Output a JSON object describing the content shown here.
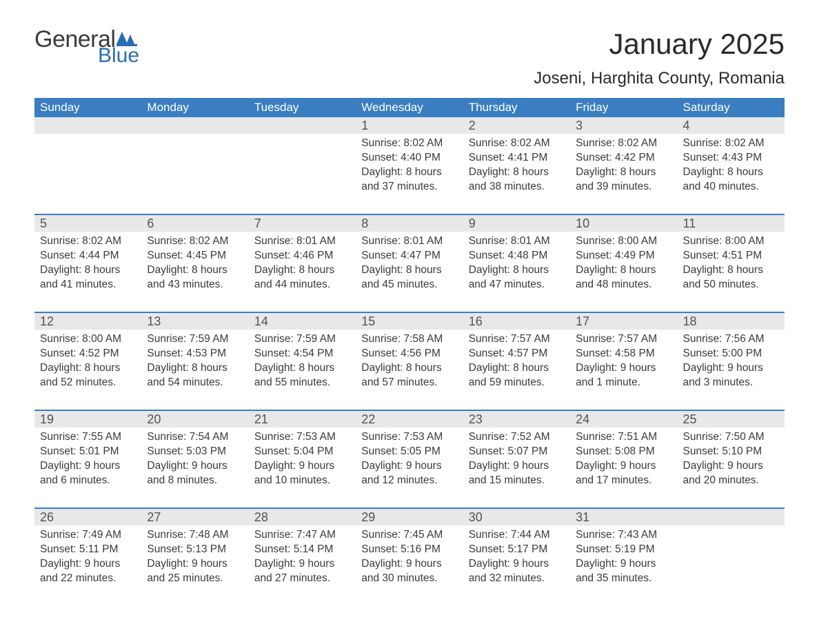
{
  "logo": {
    "text_general": "General",
    "text_blue": "Blue",
    "icon_color": "#2a6db5"
  },
  "header": {
    "month_title": "January 2025",
    "location": "Joseni, Harghita County, Romania"
  },
  "styling": {
    "header_bg": "#3a7ec1",
    "header_text": "#ffffff",
    "day_number_bg": "#e8e8e8",
    "day_number_color": "#525252",
    "body_text": "#3a3a3a",
    "row_border": "#3a7ec1",
    "page_bg": "#ffffff",
    "title_fontsize": 42,
    "location_fontsize": 24,
    "weekday_fontsize": 17,
    "daynum_fontsize": 18,
    "content_fontsize": 15.5
  },
  "weekdays": [
    "Sunday",
    "Monday",
    "Tuesday",
    "Wednesday",
    "Thursday",
    "Friday",
    "Saturday"
  ],
  "weeks": [
    [
      {
        "day": "",
        "sunrise": "",
        "sunset": "",
        "daylight": ""
      },
      {
        "day": "",
        "sunrise": "",
        "sunset": "",
        "daylight": ""
      },
      {
        "day": "",
        "sunrise": "",
        "sunset": "",
        "daylight": ""
      },
      {
        "day": "1",
        "sunrise": "8:02 AM",
        "sunset": "4:40 PM",
        "daylight": "8 hours and 37 minutes."
      },
      {
        "day": "2",
        "sunrise": "8:02 AM",
        "sunset": "4:41 PM",
        "daylight": "8 hours and 38 minutes."
      },
      {
        "day": "3",
        "sunrise": "8:02 AM",
        "sunset": "4:42 PM",
        "daylight": "8 hours and 39 minutes."
      },
      {
        "day": "4",
        "sunrise": "8:02 AM",
        "sunset": "4:43 PM",
        "daylight": "8 hours and 40 minutes."
      }
    ],
    [
      {
        "day": "5",
        "sunrise": "8:02 AM",
        "sunset": "4:44 PM",
        "daylight": "8 hours and 41 minutes."
      },
      {
        "day": "6",
        "sunrise": "8:02 AM",
        "sunset": "4:45 PM",
        "daylight": "8 hours and 43 minutes."
      },
      {
        "day": "7",
        "sunrise": "8:01 AM",
        "sunset": "4:46 PM",
        "daylight": "8 hours and 44 minutes."
      },
      {
        "day": "8",
        "sunrise": "8:01 AM",
        "sunset": "4:47 PM",
        "daylight": "8 hours and 45 minutes."
      },
      {
        "day": "9",
        "sunrise": "8:01 AM",
        "sunset": "4:48 PM",
        "daylight": "8 hours and 47 minutes."
      },
      {
        "day": "10",
        "sunrise": "8:00 AM",
        "sunset": "4:49 PM",
        "daylight": "8 hours and 48 minutes."
      },
      {
        "day": "11",
        "sunrise": "8:00 AM",
        "sunset": "4:51 PM",
        "daylight": "8 hours and 50 minutes."
      }
    ],
    [
      {
        "day": "12",
        "sunrise": "8:00 AM",
        "sunset": "4:52 PM",
        "daylight": "8 hours and 52 minutes."
      },
      {
        "day": "13",
        "sunrise": "7:59 AM",
        "sunset": "4:53 PM",
        "daylight": "8 hours and 54 minutes."
      },
      {
        "day": "14",
        "sunrise": "7:59 AM",
        "sunset": "4:54 PM",
        "daylight": "8 hours and 55 minutes."
      },
      {
        "day": "15",
        "sunrise": "7:58 AM",
        "sunset": "4:56 PM",
        "daylight": "8 hours and 57 minutes."
      },
      {
        "day": "16",
        "sunrise": "7:57 AM",
        "sunset": "4:57 PM",
        "daylight": "8 hours and 59 minutes."
      },
      {
        "day": "17",
        "sunrise": "7:57 AM",
        "sunset": "4:58 PM",
        "daylight": "9 hours and 1 minute."
      },
      {
        "day": "18",
        "sunrise": "7:56 AM",
        "sunset": "5:00 PM",
        "daylight": "9 hours and 3 minutes."
      }
    ],
    [
      {
        "day": "19",
        "sunrise": "7:55 AM",
        "sunset": "5:01 PM",
        "daylight": "9 hours and 6 minutes."
      },
      {
        "day": "20",
        "sunrise": "7:54 AM",
        "sunset": "5:03 PM",
        "daylight": "9 hours and 8 minutes."
      },
      {
        "day": "21",
        "sunrise": "7:53 AM",
        "sunset": "5:04 PM",
        "daylight": "9 hours and 10 minutes."
      },
      {
        "day": "22",
        "sunrise": "7:53 AM",
        "sunset": "5:05 PM",
        "daylight": "9 hours and 12 minutes."
      },
      {
        "day": "23",
        "sunrise": "7:52 AM",
        "sunset": "5:07 PM",
        "daylight": "9 hours and 15 minutes."
      },
      {
        "day": "24",
        "sunrise": "7:51 AM",
        "sunset": "5:08 PM",
        "daylight": "9 hours and 17 minutes."
      },
      {
        "day": "25",
        "sunrise": "7:50 AM",
        "sunset": "5:10 PM",
        "daylight": "9 hours and 20 minutes."
      }
    ],
    [
      {
        "day": "26",
        "sunrise": "7:49 AM",
        "sunset": "5:11 PM",
        "daylight": "9 hours and 22 minutes."
      },
      {
        "day": "27",
        "sunrise": "7:48 AM",
        "sunset": "5:13 PM",
        "daylight": "9 hours and 25 minutes."
      },
      {
        "day": "28",
        "sunrise": "7:47 AM",
        "sunset": "5:14 PM",
        "daylight": "9 hours and 27 minutes."
      },
      {
        "day": "29",
        "sunrise": "7:45 AM",
        "sunset": "5:16 PM",
        "daylight": "9 hours and 30 minutes."
      },
      {
        "day": "30",
        "sunrise": "7:44 AM",
        "sunset": "5:17 PM",
        "daylight": "9 hours and 32 minutes."
      },
      {
        "day": "31",
        "sunrise": "7:43 AM",
        "sunset": "5:19 PM",
        "daylight": "9 hours and 35 minutes."
      },
      {
        "day": "",
        "sunrise": "",
        "sunset": "",
        "daylight": ""
      }
    ]
  ],
  "labels": {
    "sunrise_prefix": "Sunrise: ",
    "sunset_prefix": "Sunset: ",
    "daylight_prefix": "Daylight: "
  }
}
